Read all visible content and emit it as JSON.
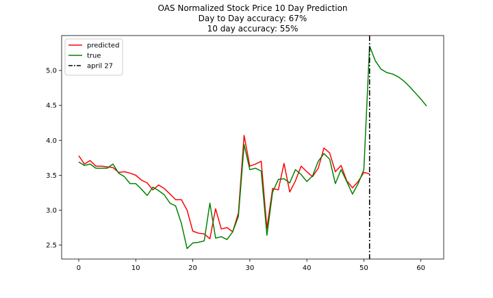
{
  "chart_data": {
    "type": "line",
    "title_lines": [
      "OAS Normalized Stock Price 10 Day Prediction",
      "Day to Day accuracy: 67%",
      "10 day accuracy: 55%"
    ],
    "xlabel": "",
    "ylabel": "",
    "xlim": [
      -3,
      64
    ],
    "ylim": [
      2.3,
      5.5
    ],
    "xticks": [
      0,
      10,
      20,
      30,
      40,
      50,
      60
    ],
    "xtick_labels": [
      "0",
      "10",
      "20",
      "30",
      "40",
      "50",
      "60"
    ],
    "yticks": [
      2.5,
      3.0,
      3.5,
      4.0,
      4.5,
      5.0
    ],
    "ytick_labels": [
      "2.5",
      "3.0",
      "3.5",
      "4.0",
      "4.5",
      "5.0"
    ],
    "grid": false,
    "legend_position": "top-left",
    "series": [
      {
        "name": "predicted",
        "color": "#ff0000",
        "style": "solid",
        "x": [
          0,
          1,
          2,
          3,
          4,
          5,
          6,
          7,
          8,
          9,
          10,
          11,
          12,
          13,
          14,
          15,
          16,
          17,
          18,
          19,
          20,
          21,
          22,
          23,
          24,
          25,
          26,
          27,
          28,
          29,
          30,
          31,
          32,
          33,
          34,
          35,
          36,
          37,
          38,
          39,
          40,
          41,
          42,
          43,
          44,
          45,
          46,
          47,
          48,
          49,
          50,
          51
        ],
        "values": [
          3.78,
          3.66,
          3.71,
          3.63,
          3.63,
          3.62,
          3.61,
          3.54,
          3.55,
          3.53,
          3.5,
          3.43,
          3.39,
          3.29,
          3.36,
          3.31,
          3.23,
          3.15,
          3.15,
          3.0,
          2.7,
          2.67,
          2.66,
          2.59,
          3.02,
          2.73,
          2.75,
          2.69,
          2.96,
          4.07,
          3.63,
          3.66,
          3.7,
          2.74,
          3.31,
          3.29,
          3.67,
          3.26,
          3.42,
          3.63,
          3.55,
          3.48,
          3.6,
          3.89,
          3.82,
          3.55,
          3.64,
          3.42,
          3.32,
          3.41,
          3.54,
          3.52
        ]
      },
      {
        "name": "true",
        "color": "#008000",
        "style": "solid",
        "x": [
          0,
          1,
          2,
          3,
          4,
          5,
          6,
          7,
          8,
          9,
          10,
          11,
          12,
          13,
          14,
          15,
          16,
          17,
          18,
          19,
          20,
          21,
          22,
          23,
          24,
          25,
          26,
          27,
          28,
          29,
          30,
          31,
          32,
          33,
          34,
          35,
          36,
          37,
          38,
          39,
          40,
          41,
          42,
          43,
          44,
          45,
          46,
          47,
          48,
          49,
          50,
          51,
          52,
          53,
          54,
          55,
          56,
          57,
          58,
          59,
          60,
          61
        ],
        "values": [
          3.69,
          3.64,
          3.66,
          3.6,
          3.6,
          3.6,
          3.66,
          3.53,
          3.48,
          3.38,
          3.38,
          3.3,
          3.21,
          3.33,
          3.28,
          3.22,
          3.1,
          3.06,
          2.81,
          2.45,
          2.53,
          2.54,
          2.56,
          3.1,
          2.6,
          2.62,
          2.58,
          2.69,
          2.91,
          3.94,
          3.58,
          3.6,
          3.56,
          2.64,
          3.26,
          3.44,
          3.45,
          3.39,
          3.58,
          3.51,
          3.41,
          3.49,
          3.7,
          3.81,
          3.73,
          3.38,
          3.58,
          3.41,
          3.23,
          3.38,
          3.58,
          5.35,
          5.14,
          5.02,
          4.97,
          4.95,
          4.91,
          4.85,
          4.77,
          4.68,
          4.59,
          4.49
        ]
      },
      {
        "name": "april 27",
        "color": "#000000",
        "style": "dashdot",
        "vertical_x": 51
      }
    ]
  }
}
